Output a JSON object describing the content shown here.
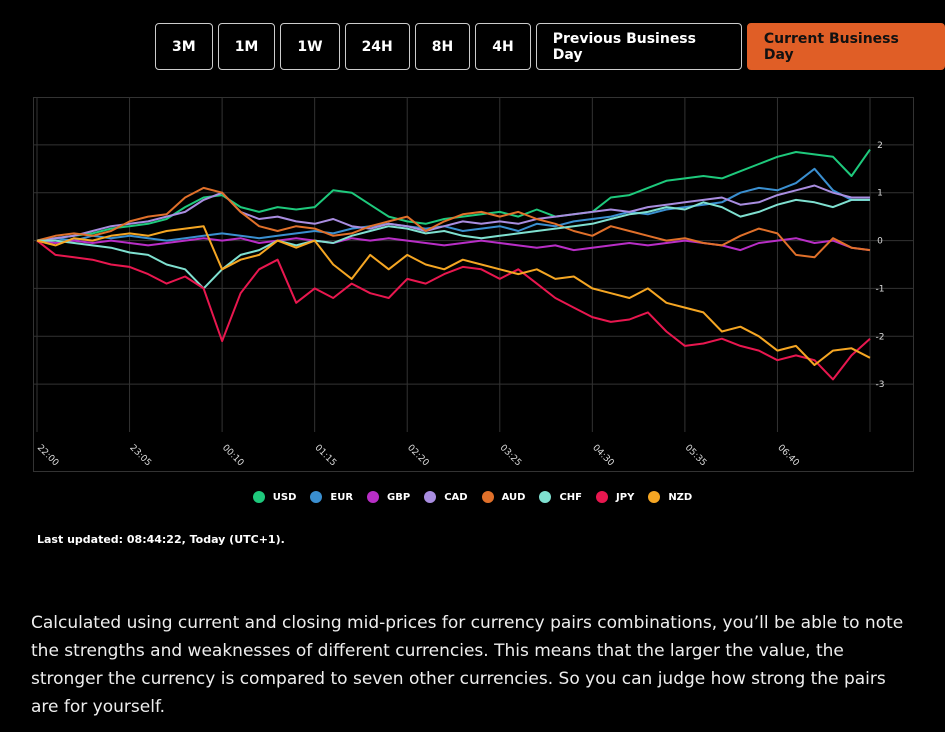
{
  "buttons": [
    "3M",
    "1M",
    "1W",
    "24H",
    "8H",
    "4H",
    "Previous Business Day",
    "Current Business Day"
  ],
  "chart_data": {
    "type": "line",
    "categories": [
      "22:00",
      null,
      null,
      null,
      null,
      "23:05",
      null,
      null,
      null,
      null,
      "00:10",
      null,
      null,
      null,
      null,
      "01:15",
      null,
      null,
      null,
      null,
      "02:20",
      null,
      null,
      null,
      null,
      "03:25",
      null,
      null,
      null,
      null,
      "04:30",
      null,
      null,
      null,
      null,
      "05:35",
      null,
      null,
      null,
      null,
      "06:40",
      null,
      null,
      null,
      null,
      null
    ],
    "series": [
      {
        "name": "USD",
        "color": "#1ec97c",
        "values": [
          0,
          0.05,
          0.1,
          0.15,
          0.25,
          0.3,
          0.35,
          0.45,
          0.7,
          0.9,
          0.95,
          0.7,
          0.6,
          0.7,
          0.65,
          0.7,
          1.05,
          1.0,
          0.75,
          0.5,
          0.4,
          0.35,
          0.45,
          0.5,
          0.55,
          0.6,
          0.5,
          0.65,
          0.5,
          0.55,
          0.6,
          0.9,
          0.95,
          1.1,
          1.25,
          1.3,
          1.35,
          1.3,
          1.45,
          1.6,
          1.75,
          1.85,
          1.8,
          1.75,
          1.35,
          1.9
        ]
      },
      {
        "name": "EUR",
        "color": "#3a8fd0",
        "values": [
          0,
          0.05,
          0.0,
          0.1,
          0.05,
          0.1,
          0.05,
          0.0,
          0.05,
          0.1,
          0.15,
          0.1,
          0.05,
          0.1,
          0.15,
          0.2,
          0.15,
          0.25,
          0.3,
          0.35,
          0.3,
          0.25,
          0.3,
          0.2,
          0.25,
          0.3,
          0.2,
          0.35,
          0.3,
          0.4,
          0.45,
          0.5,
          0.6,
          0.55,
          0.65,
          0.7,
          0.75,
          0.8,
          1.0,
          1.1,
          1.05,
          1.2,
          1.5,
          1.05,
          0.85,
          0.85
        ]
      },
      {
        "name": "GBP",
        "color": "#b82ec6",
        "values": [
          0,
          -0.05,
          0.0,
          -0.05,
          0.0,
          -0.05,
          -0.1,
          -0.05,
          0.0,
          0.05,
          0.0,
          0.05,
          -0.05,
          0.0,
          0.05,
          0.0,
          -0.05,
          0.05,
          0.0,
          0.05,
          0.0,
          -0.05,
          -0.1,
          -0.05,
          0.0,
          -0.05,
          -0.1,
          -0.15,
          -0.1,
          -0.2,
          -0.15,
          -0.1,
          -0.05,
          -0.1,
          -0.05,
          0.0,
          -0.05,
          -0.1,
          -0.2,
          -0.05,
          0.0,
          0.05,
          -0.05,
          0.0,
          -0.15,
          -0.2
        ]
      },
      {
        "name": "CAD",
        "color": "#a98de0",
        "values": [
          0,
          0.05,
          0.1,
          0.2,
          0.3,
          0.35,
          0.4,
          0.5,
          0.6,
          0.85,
          1.0,
          0.6,
          0.45,
          0.5,
          0.4,
          0.35,
          0.45,
          0.3,
          0.25,
          0.35,
          0.3,
          0.2,
          0.3,
          0.4,
          0.35,
          0.4,
          0.35,
          0.45,
          0.5,
          0.55,
          0.6,
          0.65,
          0.6,
          0.7,
          0.75,
          0.8,
          0.85,
          0.9,
          0.75,
          0.8,
          0.95,
          1.05,
          1.15,
          1.0,
          0.9,
          0.9
        ]
      },
      {
        "name": "AUD",
        "color": "#e0702a",
        "values": [
          0,
          0.1,
          0.15,
          0.1,
          0.2,
          0.4,
          0.5,
          0.55,
          0.9,
          1.1,
          1.0,
          0.6,
          0.3,
          0.2,
          0.3,
          0.25,
          0.1,
          0.15,
          0.3,
          0.4,
          0.5,
          0.2,
          0.4,
          0.55,
          0.6,
          0.5,
          0.6,
          0.45,
          0.35,
          0.2,
          0.1,
          0.3,
          0.2,
          0.1,
          0.0,
          0.05,
          -0.05,
          -0.1,
          0.1,
          0.25,
          0.15,
          -0.3,
          -0.35,
          0.05,
          -0.15,
          -0.2
        ]
      },
      {
        "name": "CHF",
        "color": "#7fe0d0",
        "values": [
          0,
          0.0,
          -0.05,
          -0.1,
          -0.15,
          -0.25,
          -0.3,
          -0.5,
          -0.6,
          -1.0,
          -0.6,
          -0.3,
          -0.2,
          0.0,
          -0.1,
          0.0,
          -0.05,
          0.1,
          0.2,
          0.3,
          0.25,
          0.15,
          0.2,
          0.1,
          0.05,
          0.1,
          0.15,
          0.2,
          0.25,
          0.3,
          0.35,
          0.45,
          0.55,
          0.6,
          0.7,
          0.65,
          0.8,
          0.7,
          0.5,
          0.6,
          0.75,
          0.85,
          0.8,
          0.7,
          0.85,
          0.85
        ]
      },
      {
        "name": "JPY",
        "color": "#e8174f",
        "values": [
          0,
          -0.3,
          -0.35,
          -0.4,
          -0.5,
          -0.55,
          -0.7,
          -0.9,
          -0.75,
          -1.0,
          -2.1,
          -1.1,
          -0.6,
          -0.4,
          -1.3,
          -1.0,
          -1.2,
          -0.9,
          -1.1,
          -1.2,
          -0.8,
          -0.9,
          -0.7,
          -0.55,
          -0.6,
          -0.8,
          -0.6,
          -0.9,
          -1.2,
          -1.4,
          -1.6,
          -1.7,
          -1.65,
          -1.5,
          -1.9,
          -2.2,
          -2.15,
          -2.05,
          -2.2,
          -2.3,
          -2.5,
          -2.4,
          -2.5,
          -2.9,
          -2.4,
          -2.05
        ]
      },
      {
        "name": "NZD",
        "color": "#f5a623",
        "values": [
          0,
          -0.1,
          0.05,
          0.0,
          0.1,
          0.15,
          0.1,
          0.2,
          0.25,
          0.3,
          -0.6,
          -0.4,
          -0.3,
          0.0,
          -0.15,
          0.0,
          -0.5,
          -0.8,
          -0.3,
          -0.6,
          -0.3,
          -0.5,
          -0.6,
          -0.4,
          -0.5,
          -0.6,
          -0.7,
          -0.6,
          -0.8,
          -0.75,
          -1.0,
          -1.1,
          -1.2,
          -1.0,
          -1.3,
          -1.4,
          -1.5,
          -1.9,
          -1.8,
          -2.0,
          -2.3,
          -2.2,
          -2.6,
          -2.3,
          -2.25,
          -2.45
        ]
      }
    ],
    "ylim": [
      -4,
      3
    ],
    "yticks": [
      -3,
      -2,
      -1,
      0,
      1,
      2
    ],
    "grid": true,
    "legend": "bottom"
  },
  "last_updated": "Last updated: 08:44:22, Today (UTC+1).",
  "description": "Calculated using current and closing mid-prices for currency pairs combinations, you’ll be able to note the strengths and weaknesses of different currencies. This means that the larger the value, the stronger the currency is compared to seven other currencies. So you can judge how strong the pairs are for yourself."
}
